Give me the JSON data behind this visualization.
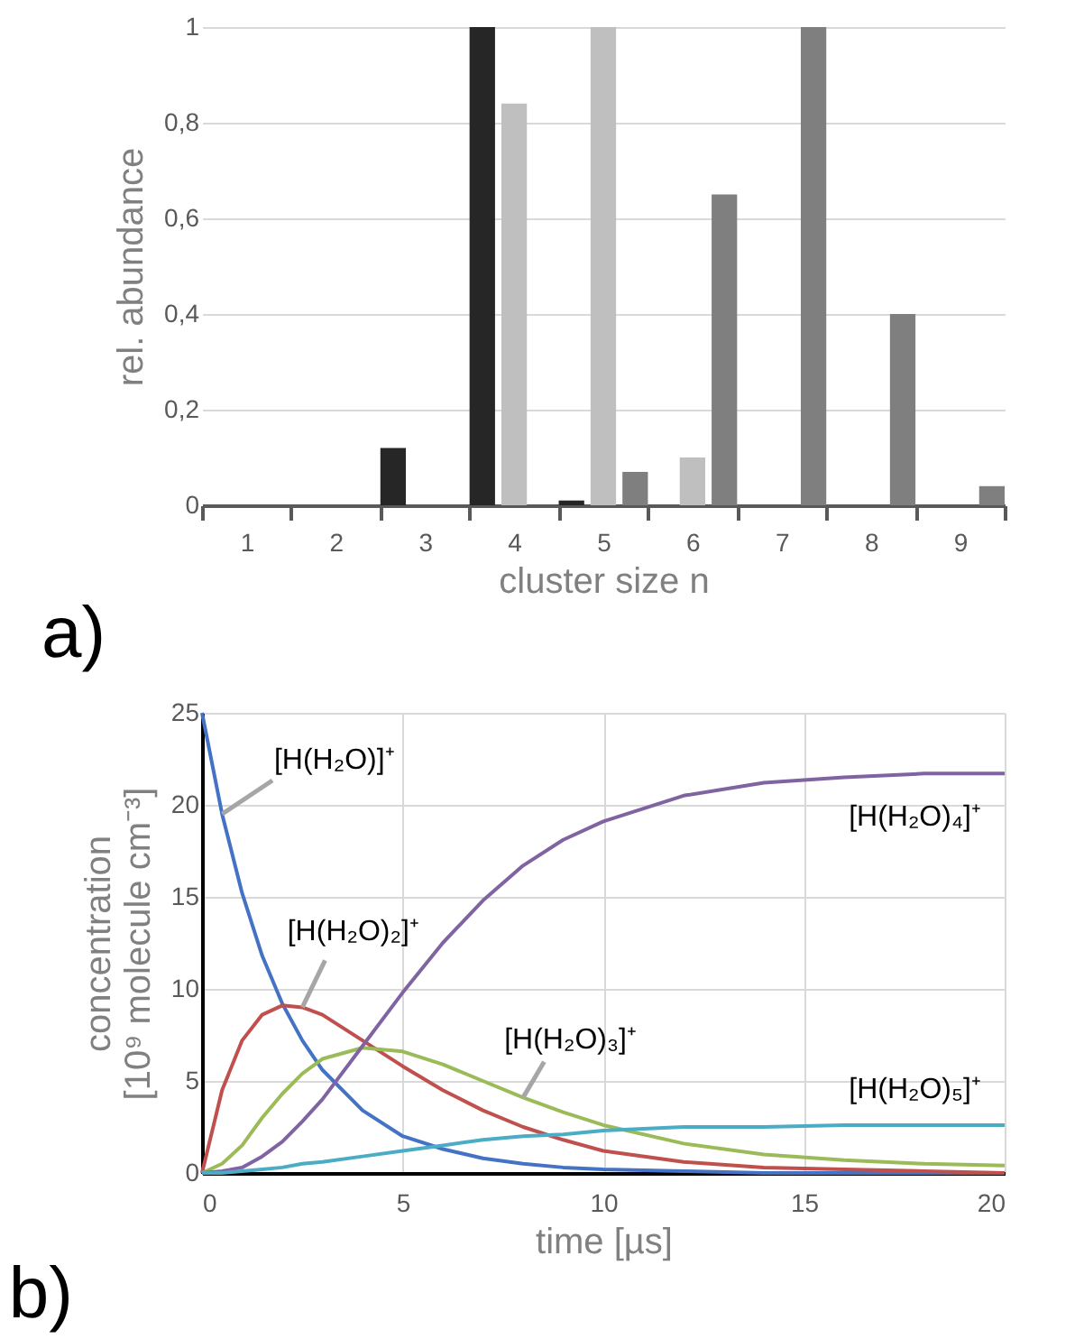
{
  "chart_data": [
    {
      "type": "bar",
      "title": "a)",
      "xlabel": "cluster size n",
      "ylabel": "rel. abundance",
      "categories": [
        "1",
        "2",
        "3",
        "4",
        "5",
        "6",
        "7",
        "8",
        "9"
      ],
      "series": [
        {
          "color": "#262626",
          "values": [
            0,
            0,
            0.12,
            1,
            0.01,
            0,
            0,
            0,
            0
          ]
        },
        {
          "color": "#bfbfbf",
          "values": [
            0,
            0,
            0,
            0.84,
            1,
            0.1,
            0,
            0,
            0
          ]
        },
        {
          "color": "#7f7f7f",
          "values": [
            0,
            0,
            0,
            0,
            0.07,
            0.65,
            1,
            0.4,
            0.04
          ]
        }
      ],
      "ylim": [
        0,
        1
      ],
      "yticks": [
        0,
        {
          "value": 0.2,
          "label": "0,2"
        },
        {
          "value": 0.4,
          "label": "0,4"
        },
        {
          "value": 0.6,
          "label": "0,6"
        },
        {
          "value": 0.8,
          "label": "0,8"
        },
        1
      ],
      "grid": "y",
      "legend": false
    },
    {
      "type": "line",
      "title": "b)",
      "xlabel": "time [µs]",
      "ylabel": "concentration\n[10⁹ molecule cm⁻³]",
      "x": [
        0,
        0.5,
        1,
        1.5,
        2,
        2.5,
        3,
        4,
        5,
        6,
        7,
        8,
        9,
        10,
        12,
        14,
        16,
        18,
        20
      ],
      "series": [
        {
          "color": "#4472c4",
          "values": [
            25,
            19.5,
            15.2,
            11.8,
            9.2,
            7.2,
            5.6,
            3.4,
            2,
            1.3,
            0.8,
            0.5,
            0.3,
            0.2,
            0.1,
            0,
            0,
            0,
            0
          ]
        },
        {
          "color": "#c0504d",
          "values": [
            0,
            4.5,
            7.2,
            8.6,
            9.1,
            9,
            8.6,
            7.2,
            5.8,
            4.5,
            3.4,
            2.5,
            1.8,
            1.2,
            0.6,
            0.3,
            0.2,
            0.1,
            0
          ]
        },
        {
          "color": "#9bbb59",
          "values": [
            0,
            0.5,
            1.5,
            3,
            4.3,
            5.4,
            6.2,
            6.8,
            6.6,
            5.9,
            5,
            4.1,
            3.3,
            2.6,
            1.6,
            1,
            0.7,
            0.5,
            0.4
          ]
        },
        {
          "color": "#8064a2",
          "values": [
            0,
            0.1,
            0.3,
            0.9,
            1.7,
            2.8,
            4,
            6.9,
            9.8,
            12.5,
            14.8,
            16.7,
            18.1,
            19.1,
            20.5,
            21.2,
            21.5,
            21.7,
            21.7
          ]
        },
        {
          "color": "#4bacc6",
          "values": [
            0,
            0,
            0.1,
            0.2,
            0.3,
            0.5,
            0.6,
            0.9,
            1.2,
            1.5,
            1.8,
            2,
            2.1,
            2.3,
            2.5,
            2.5,
            2.6,
            2.6,
            2.6
          ]
        }
      ],
      "annotations": [
        {
          "text": "[H(H₂O)]⁺",
          "x": 0.5,
          "y": 19.5
        },
        {
          "text": "[H(H₂O)₂]⁺",
          "x": 2.5,
          "y": 9
        },
        {
          "text": "[H(H₂O)₃]⁺",
          "x": 8,
          "y": 4.1
        },
        {
          "text": "[H(H₂O)₄]⁺",
          "x": 20,
          "y": 21.7
        },
        {
          "text": "[H(H₂O)₅]⁺",
          "x": 20,
          "y": 2.6
        }
      ],
      "xlim": [
        0,
        20
      ],
      "xticks": [
        0,
        5,
        10,
        15,
        20
      ],
      "ylim": [
        0,
        25
      ],
      "yticks": [
        0,
        5,
        10,
        15,
        20,
        25
      ],
      "grid": true,
      "legend": false,
      "line_style": "solid",
      "marker": "none"
    }
  ]
}
